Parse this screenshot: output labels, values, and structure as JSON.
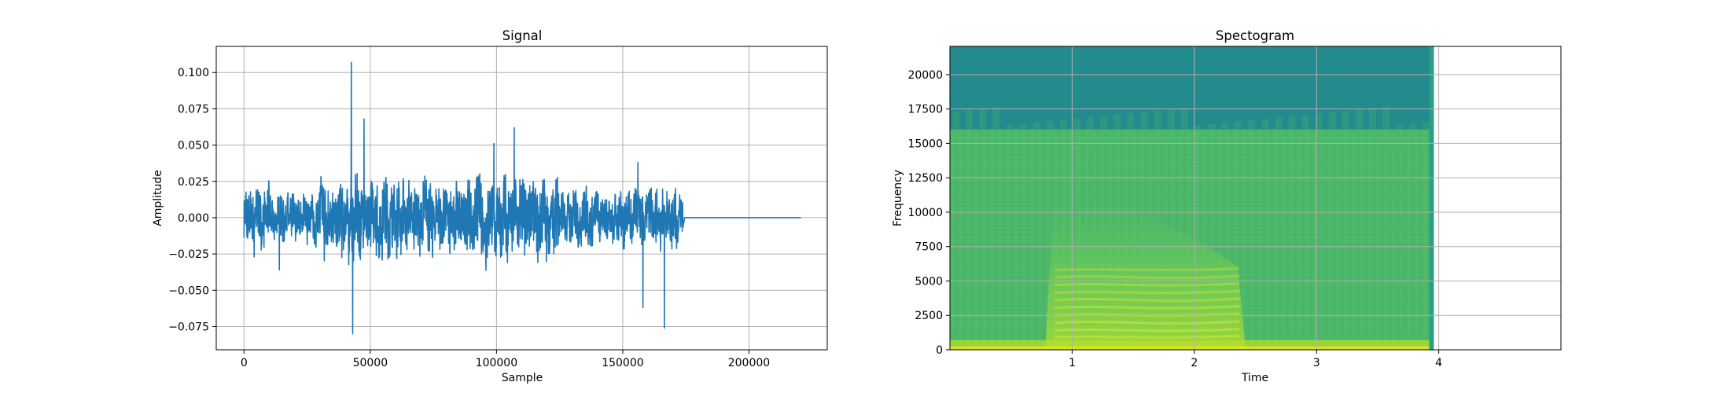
{
  "chart_data": [
    {
      "type": "line",
      "title": "Signal",
      "xlabel": "Sample",
      "ylabel": "Amplitude",
      "xlim": [
        -11000,
        231000
      ],
      "ylim": [
        -0.091,
        0.118
      ],
      "xticks": [
        0,
        50000,
        100000,
        150000,
        200000
      ],
      "xtick_labels": [
        "0",
        "50000",
        "100000",
        "150000",
        "200000"
      ],
      "yticks": [
        -0.075,
        -0.05,
        -0.025,
        0.0,
        0.025,
        0.05,
        0.075,
        0.1
      ],
      "ytick_labels": [
        "−0.075",
        "−0.050",
        "−0.025",
        "0.000",
        "0.025",
        "0.050",
        "0.075",
        "0.100"
      ],
      "grid": true,
      "line_color": "#1f77b4",
      "series": [
        {
          "x_range": [
            0,
            220500
          ],
          "signal_end": 174000,
          "y_min": -0.08,
          "y_max": 0.107,
          "peaks": [
            {
              "x": 42500,
              "y": 0.107
            },
            {
              "x": 43000,
              "y": -0.08
            },
            {
              "x": 47500,
              "y": 0.068
            },
            {
              "x": 107000,
              "y": 0.062
            },
            {
              "x": 99000,
              "y": 0.051
            },
            {
              "x": 156000,
              "y": 0.038
            },
            {
              "x": 158000,
              "y": -0.062
            },
            {
              "x": 166500,
              "y": -0.076
            },
            {
              "x": 4000,
              "y": -0.027
            },
            {
              "x": 14000,
              "y": -0.036
            }
          ]
        }
      ]
    },
    {
      "type": "heatmap",
      "title": "Spectogram",
      "xlabel": "Time",
      "ylabel": "Frequency",
      "xlim": [
        0,
        5.0
      ],
      "ylim": [
        0,
        22050
      ],
      "data_extent_x": [
        0,
        3.96
      ],
      "xticks": [
        1,
        2,
        3,
        4
      ],
      "xtick_labels": [
        "1",
        "2",
        "3",
        "4"
      ],
      "yticks": [
        0,
        2500,
        5000,
        7500,
        10000,
        12500,
        15000,
        17500,
        20000
      ],
      "ytick_labels": [
        "0",
        "2500",
        "5000",
        "7500",
        "10000",
        "12500",
        "15000",
        "17500",
        "20000"
      ],
      "grid": true,
      "colormap": "viridis",
      "colors": {
        "high_band": "#238a8d",
        "mid_band": "#4cb86a",
        "harmonics": "#bde03a",
        "low_band": "#d9e51f"
      },
      "regions": {
        "cutoff_frequency": 16000,
        "speech_time": [
          0.78,
          2.42
        ],
        "harmonic_frequencies": [
          900,
          1400,
          1950,
          2500,
          3050,
          3600,
          4150,
          4700,
          5250,
          5800
        ]
      }
    }
  ]
}
